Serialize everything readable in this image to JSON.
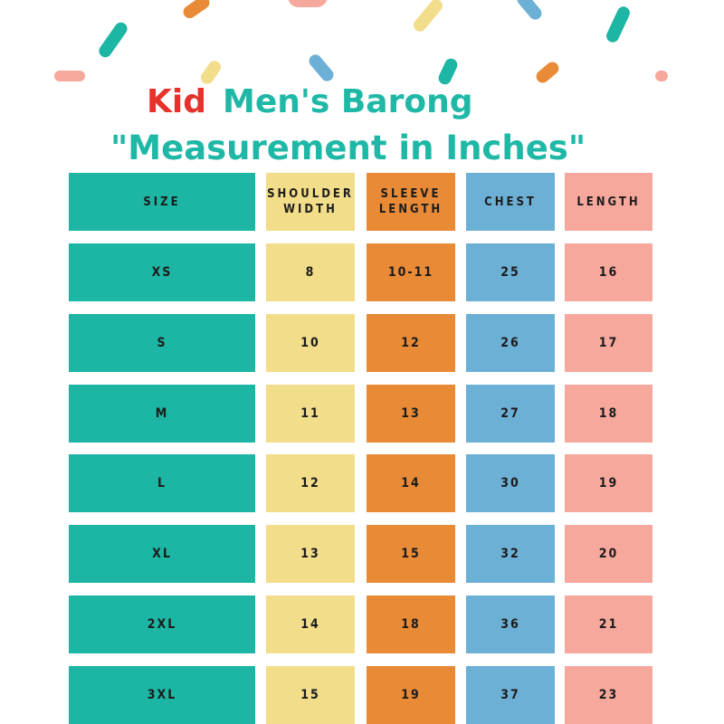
{
  "title": {
    "kid": "Kid",
    "line1": "Men's Barong",
    "line2": "\"Measurement in Inches\""
  },
  "colors": {
    "teal": "#1db5a3",
    "yellow": "#f2dd8a",
    "orange": "#e88a36",
    "blue": "#6db0d6",
    "pink": "#f6a89c",
    "title_teal": "#1fb8a6",
    "title_red": "#e5322b"
  },
  "table": {
    "headers": [
      [
        "SIZE"
      ],
      [
        "SHOULDER",
        "WIDTH"
      ],
      [
        "SLEEVE",
        "LENGTH"
      ],
      [
        "CHEST"
      ],
      [
        "LENGTH"
      ]
    ],
    "rows": [
      [
        "XS",
        "8",
        "10-11",
        "25",
        "16"
      ],
      [
        "S",
        "10",
        "12",
        "26",
        "17"
      ],
      [
        "M",
        "11",
        "13",
        "27",
        "18"
      ],
      [
        "L",
        "12",
        "14",
        "30",
        "19"
      ],
      [
        "XL",
        "13",
        "15",
        "32",
        "20"
      ],
      [
        "2XL",
        "14",
        "18",
        "36",
        "21"
      ],
      [
        "3XL",
        "15",
        "19",
        "37",
        "23"
      ]
    ]
  }
}
